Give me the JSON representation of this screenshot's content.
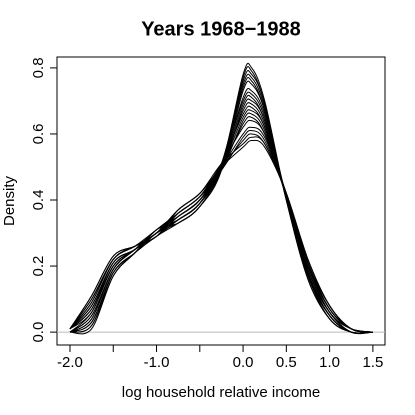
{
  "chart_data": {
    "type": "line",
    "title": "Years 1968−1988",
    "xlabel": "log household relative income",
    "ylabel": "Density",
    "color": "#000000",
    "x": [
      -2.0,
      -1.75,
      -1.5,
      -1.25,
      -1.0,
      -0.75,
      -0.5,
      -0.25,
      0.0,
      0.1,
      0.25,
      0.5,
      0.75,
      1.0,
      1.25,
      1.5
    ],
    "series": [
      {
        "values": [
          0,
          0.01,
          0.17,
          0.24,
          0.3,
          0.33,
          0.38,
          0.5,
          0.78,
          0.8,
          0.7,
          0.4,
          0.16,
          0.04,
          0,
          0
        ]
      },
      {
        "values": [
          0,
          0.02,
          0.17,
          0.24,
          0.31,
          0.33,
          0.38,
          0.49,
          0.77,
          0.79,
          0.69,
          0.4,
          0.16,
          0.04,
          0,
          0
        ]
      },
      {
        "values": [
          0,
          0.02,
          0.18,
          0.24,
          0.29,
          0.33,
          0.38,
          0.5,
          0.76,
          0.78,
          0.69,
          0.4,
          0.17,
          0.04,
          0,
          0
        ]
      },
      {
        "values": [
          0,
          0.03,
          0.18,
          0.24,
          0.3,
          0.34,
          0.39,
          0.51,
          0.75,
          0.77,
          0.68,
          0.4,
          0.17,
          0.05,
          0,
          0
        ]
      },
      {
        "values": [
          0,
          0.03,
          0.18,
          0.24,
          0.31,
          0.34,
          0.39,
          0.5,
          0.74,
          0.76,
          0.67,
          0.4,
          0.17,
          0.05,
          0,
          0
        ]
      },
      {
        "values": [
          0,
          0.04,
          0.19,
          0.25,
          0.3,
          0.34,
          0.39,
          0.49,
          0.73,
          0.75,
          0.67,
          0.41,
          0.18,
          0.05,
          0,
          0
        ]
      },
      {
        "values": [
          0,
          0.04,
          0.19,
          0.25,
          0.29,
          0.34,
          0.39,
          0.5,
          0.71,
          0.73,
          0.66,
          0.41,
          0.18,
          0.05,
          0,
          0
        ]
      },
      {
        "values": [
          0,
          0.05,
          0.19,
          0.25,
          0.3,
          0.34,
          0.39,
          0.51,
          0.7,
          0.72,
          0.65,
          0.41,
          0.18,
          0.05,
          0,
          0
        ]
      },
      {
        "values": [
          0,
          0.05,
          0.19,
          0.25,
          0.31,
          0.35,
          0.4,
          0.5,
          0.69,
          0.71,
          0.64,
          0.41,
          0.18,
          0.06,
          0,
          0
        ]
      },
      {
        "values": [
          0,
          0.06,
          0.2,
          0.25,
          0.3,
          0.35,
          0.4,
          0.49,
          0.68,
          0.7,
          0.64,
          0.41,
          0.19,
          0.06,
          0,
          0
        ]
      },
      {
        "values": [
          0.01,
          0.06,
          0.2,
          0.25,
          0.3,
          0.35,
          0.4,
          0.5,
          0.67,
          0.69,
          0.63,
          0.41,
          0.19,
          0.06,
          0.01,
          0
        ]
      },
      {
        "values": [
          0.01,
          0.07,
          0.2,
          0.25,
          0.29,
          0.35,
          0.4,
          0.51,
          0.66,
          0.68,
          0.62,
          0.41,
          0.19,
          0.06,
          0.01,
          0
        ]
      },
      {
        "values": [
          0.01,
          0.07,
          0.21,
          0.25,
          0.3,
          0.35,
          0.4,
          0.5,
          0.65,
          0.67,
          0.62,
          0.41,
          0.2,
          0.06,
          0.01,
          0
        ]
      },
      {
        "values": [
          0.01,
          0.08,
          0.21,
          0.25,
          0.31,
          0.36,
          0.41,
          0.49,
          0.64,
          0.66,
          0.61,
          0.41,
          0.2,
          0.07,
          0.01,
          0
        ]
      },
      {
        "values": [
          0.01,
          0.08,
          0.21,
          0.25,
          0.3,
          0.36,
          0.41,
          0.5,
          0.63,
          0.65,
          0.6,
          0.41,
          0.2,
          0.07,
          0.01,
          0
        ]
      },
      {
        "values": [
          0.01,
          0.09,
          0.22,
          0.26,
          0.29,
          0.36,
          0.41,
          0.51,
          0.62,
          0.64,
          0.6,
          0.42,
          0.21,
          0.07,
          0.01,
          0
        ]
      },
      {
        "values": [
          0.01,
          0.09,
          0.22,
          0.26,
          0.3,
          0.36,
          0.41,
          0.5,
          0.6,
          0.62,
          0.59,
          0.42,
          0.21,
          0.07,
          0.01,
          0
        ]
      },
      {
        "values": [
          0.01,
          0.1,
          0.22,
          0.26,
          0.31,
          0.36,
          0.41,
          0.49,
          0.59,
          0.61,
          0.58,
          0.42,
          0.21,
          0.07,
          0.01,
          0
        ]
      },
      {
        "values": [
          0.01,
          0.1,
          0.22,
          0.26,
          0.3,
          0.37,
          0.42,
          0.5,
          0.58,
          0.6,
          0.57,
          0.42,
          0.21,
          0.08,
          0.01,
          0
        ]
      },
      {
        "values": [
          0.01,
          0.11,
          0.23,
          0.26,
          0.29,
          0.37,
          0.42,
          0.51,
          0.57,
          0.59,
          0.57,
          0.42,
          0.22,
          0.08,
          0.01,
          0
        ]
      },
      {
        "values": [
          0.01,
          0.11,
          0.23,
          0.26,
          0.3,
          0.37,
          0.42,
          0.5,
          0.56,
          0.58,
          0.56,
          0.42,
          0.22,
          0.08,
          0.01,
          0
        ]
      }
    ],
    "xlim": [
      -2.15,
      1.64
    ],
    "ylim": [
      -0.039,
      0.833
    ],
    "xticks": [
      {
        "value": -2,
        "label": "-2.0"
      },
      {
        "value": -1,
        "label": "-1.0"
      },
      {
        "value": 0,
        "label": "0.0"
      },
      0.5,
      {
        "value": 1,
        "label": "1.0"
      },
      1.5
    ],
    "xminor_ticks": [
      -1.5,
      -0.5
    ],
    "yticks": [
      {
        "value": 0,
        "label": "0.0"
      },
      0.2,
      0.4,
      0.6,
      0.8
    ]
  }
}
